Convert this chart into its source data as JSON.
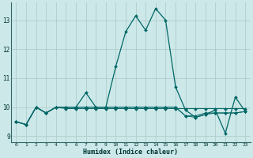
{
  "title": "",
  "xlabel": "Humidex (Indice chaleur)",
  "ylabel": "",
  "bg_color": "#cce8e8",
  "grid_color": "#b0cccc",
  "line_color": "#006666",
  "xlim": [
    -0.5,
    23.5
  ],
  "ylim": [
    8.8,
    13.6
  ],
  "yticks": [
    9,
    10,
    11,
    12,
    13
  ],
  "xticks": [
    0,
    1,
    2,
    3,
    4,
    5,
    6,
    7,
    8,
    9,
    10,
    11,
    12,
    13,
    14,
    15,
    16,
    17,
    18,
    19,
    20,
    21,
    22,
    23
  ],
  "series": [
    [
      9.5,
      9.4,
      10.0,
      9.8,
      10.0,
      10.0,
      10.0,
      10.5,
      10.0,
      10.0,
      11.4,
      12.6,
      13.15,
      12.65,
      13.4,
      13.0,
      10.7,
      9.9,
      9.65,
      9.75,
      9.9,
      9.1,
      10.35,
      9.85
    ],
    [
      9.5,
      9.4,
      10.0,
      9.8,
      10.0,
      9.95,
      9.95,
      9.95,
      9.95,
      9.95,
      9.95,
      9.95,
      9.95,
      9.95,
      9.95,
      9.95,
      9.95,
      9.95,
      9.95,
      9.95,
      9.95,
      9.95,
      9.95,
      9.95
    ],
    [
      9.5,
      9.4,
      10.0,
      9.8,
      10.0,
      10.0,
      10.0,
      10.0,
      10.0,
      10.0,
      10.0,
      10.0,
      10.0,
      10.0,
      10.0,
      10.0,
      10.0,
      9.7,
      9.7,
      9.8,
      9.8,
      9.8,
      9.8,
      9.85
    ],
    [
      9.5,
      9.4,
      10.0,
      9.8,
      10.0,
      10.0,
      10.0,
      10.0,
      10.0,
      10.0,
      10.0,
      10.0,
      10.0,
      10.0,
      10.0,
      10.0,
      10.0,
      9.7,
      9.65,
      9.75,
      9.8,
      9.8,
      9.8,
      9.85
    ]
  ]
}
